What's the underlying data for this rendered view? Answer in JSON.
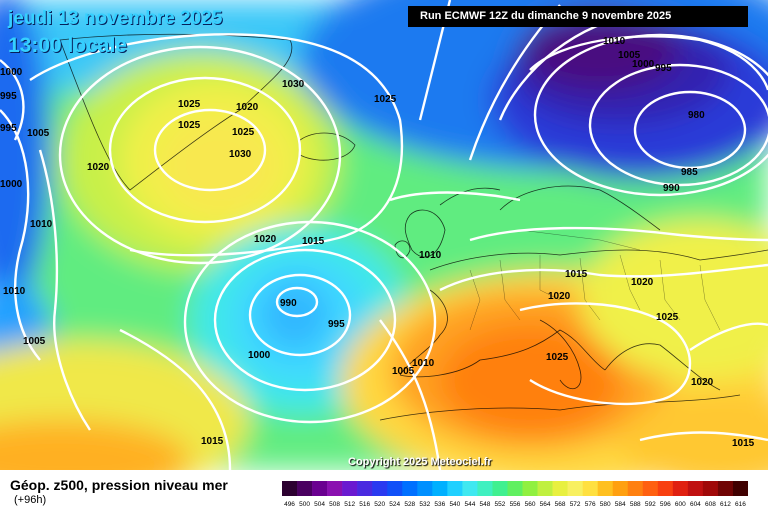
{
  "header": {
    "date_title": "jeudi 13 novembre 2025",
    "time_title": "13:00 locale",
    "run_info": "Run ECMWF 12Z du dimanche 9 novembre 2025"
  },
  "map": {
    "pressure_labels": [
      {
        "text": "1000"
      },
      {
        "text": "995"
      },
      {
        "text": "995"
      },
      {
        "text": "1005"
      },
      {
        "text": "1000"
      },
      {
        "text": "1010"
      },
      {
        "text": "1010"
      },
      {
        "text": "1005"
      },
      {
        "text": "1020"
      },
      {
        "text": "1025"
      },
      {
        "text": "1025"
      },
      {
        "text": "1020"
      },
      {
        "text": "1025"
      },
      {
        "text": "1030"
      },
      {
        "text": "1030"
      },
      {
        "text": "1025"
      },
      {
        "text": "1020"
      },
      {
        "text": "1015"
      },
      {
        "text": "990"
      },
      {
        "text": "995"
      },
      {
        "text": "1000"
      },
      {
        "text": "1005"
      },
      {
        "text": "1010"
      },
      {
        "text": "1010"
      },
      {
        "text": "1010"
      },
      {
        "text": "1005"
      },
      {
        "text": "1000"
      },
      {
        "text": "995"
      },
      {
        "text": "980"
      },
      {
        "text": "985"
      },
      {
        "text": "990"
      },
      {
        "text": "1015"
      },
      {
        "text": "1020"
      },
      {
        "text": "1020"
      },
      {
        "text": "1025"
      },
      {
        "text": "1025"
      },
      {
        "text": "1020"
      },
      {
        "text": "1015"
      },
      {
        "text": "1015"
      }
    ],
    "copyright": "Copyright 2025 Meteociel.fr"
  },
  "legend": {
    "title": "Géop. z500, pression niveau mer",
    "subtitle": "(+96h)",
    "scale_values": [
      "496",
      "500",
      "504",
      "508",
      "512",
      "516",
      "520",
      "524",
      "528",
      "532",
      "536",
      "540",
      "544",
      "548",
      "552",
      "556",
      "560",
      "564",
      "568",
      "572",
      "576",
      "580",
      "584",
      "588",
      "592",
      "596",
      "600",
      "604",
      "608",
      "612",
      "616"
    ],
    "scale_colors": [
      "#2c0030",
      "#4a0060",
      "#6a0090",
      "#8a10b0",
      "#6a1ad0",
      "#4a2ae0",
      "#2a3af0",
      "#1050f8",
      "#0070ff",
      "#0090ff",
      "#00b0ff",
      "#20d0ff",
      "#40e8f0",
      "#40f0c0",
      "#40f090",
      "#60f060",
      "#90f040",
      "#c0f040",
      "#e8f040",
      "#f8f060",
      "#ffe040",
      "#ffc020",
      "#ffa010",
      "#ff8010",
      "#ff6010",
      "#f84010",
      "#e02010",
      "#c01010",
      "#a00808",
      "#700404",
      "#400000"
    ]
  }
}
